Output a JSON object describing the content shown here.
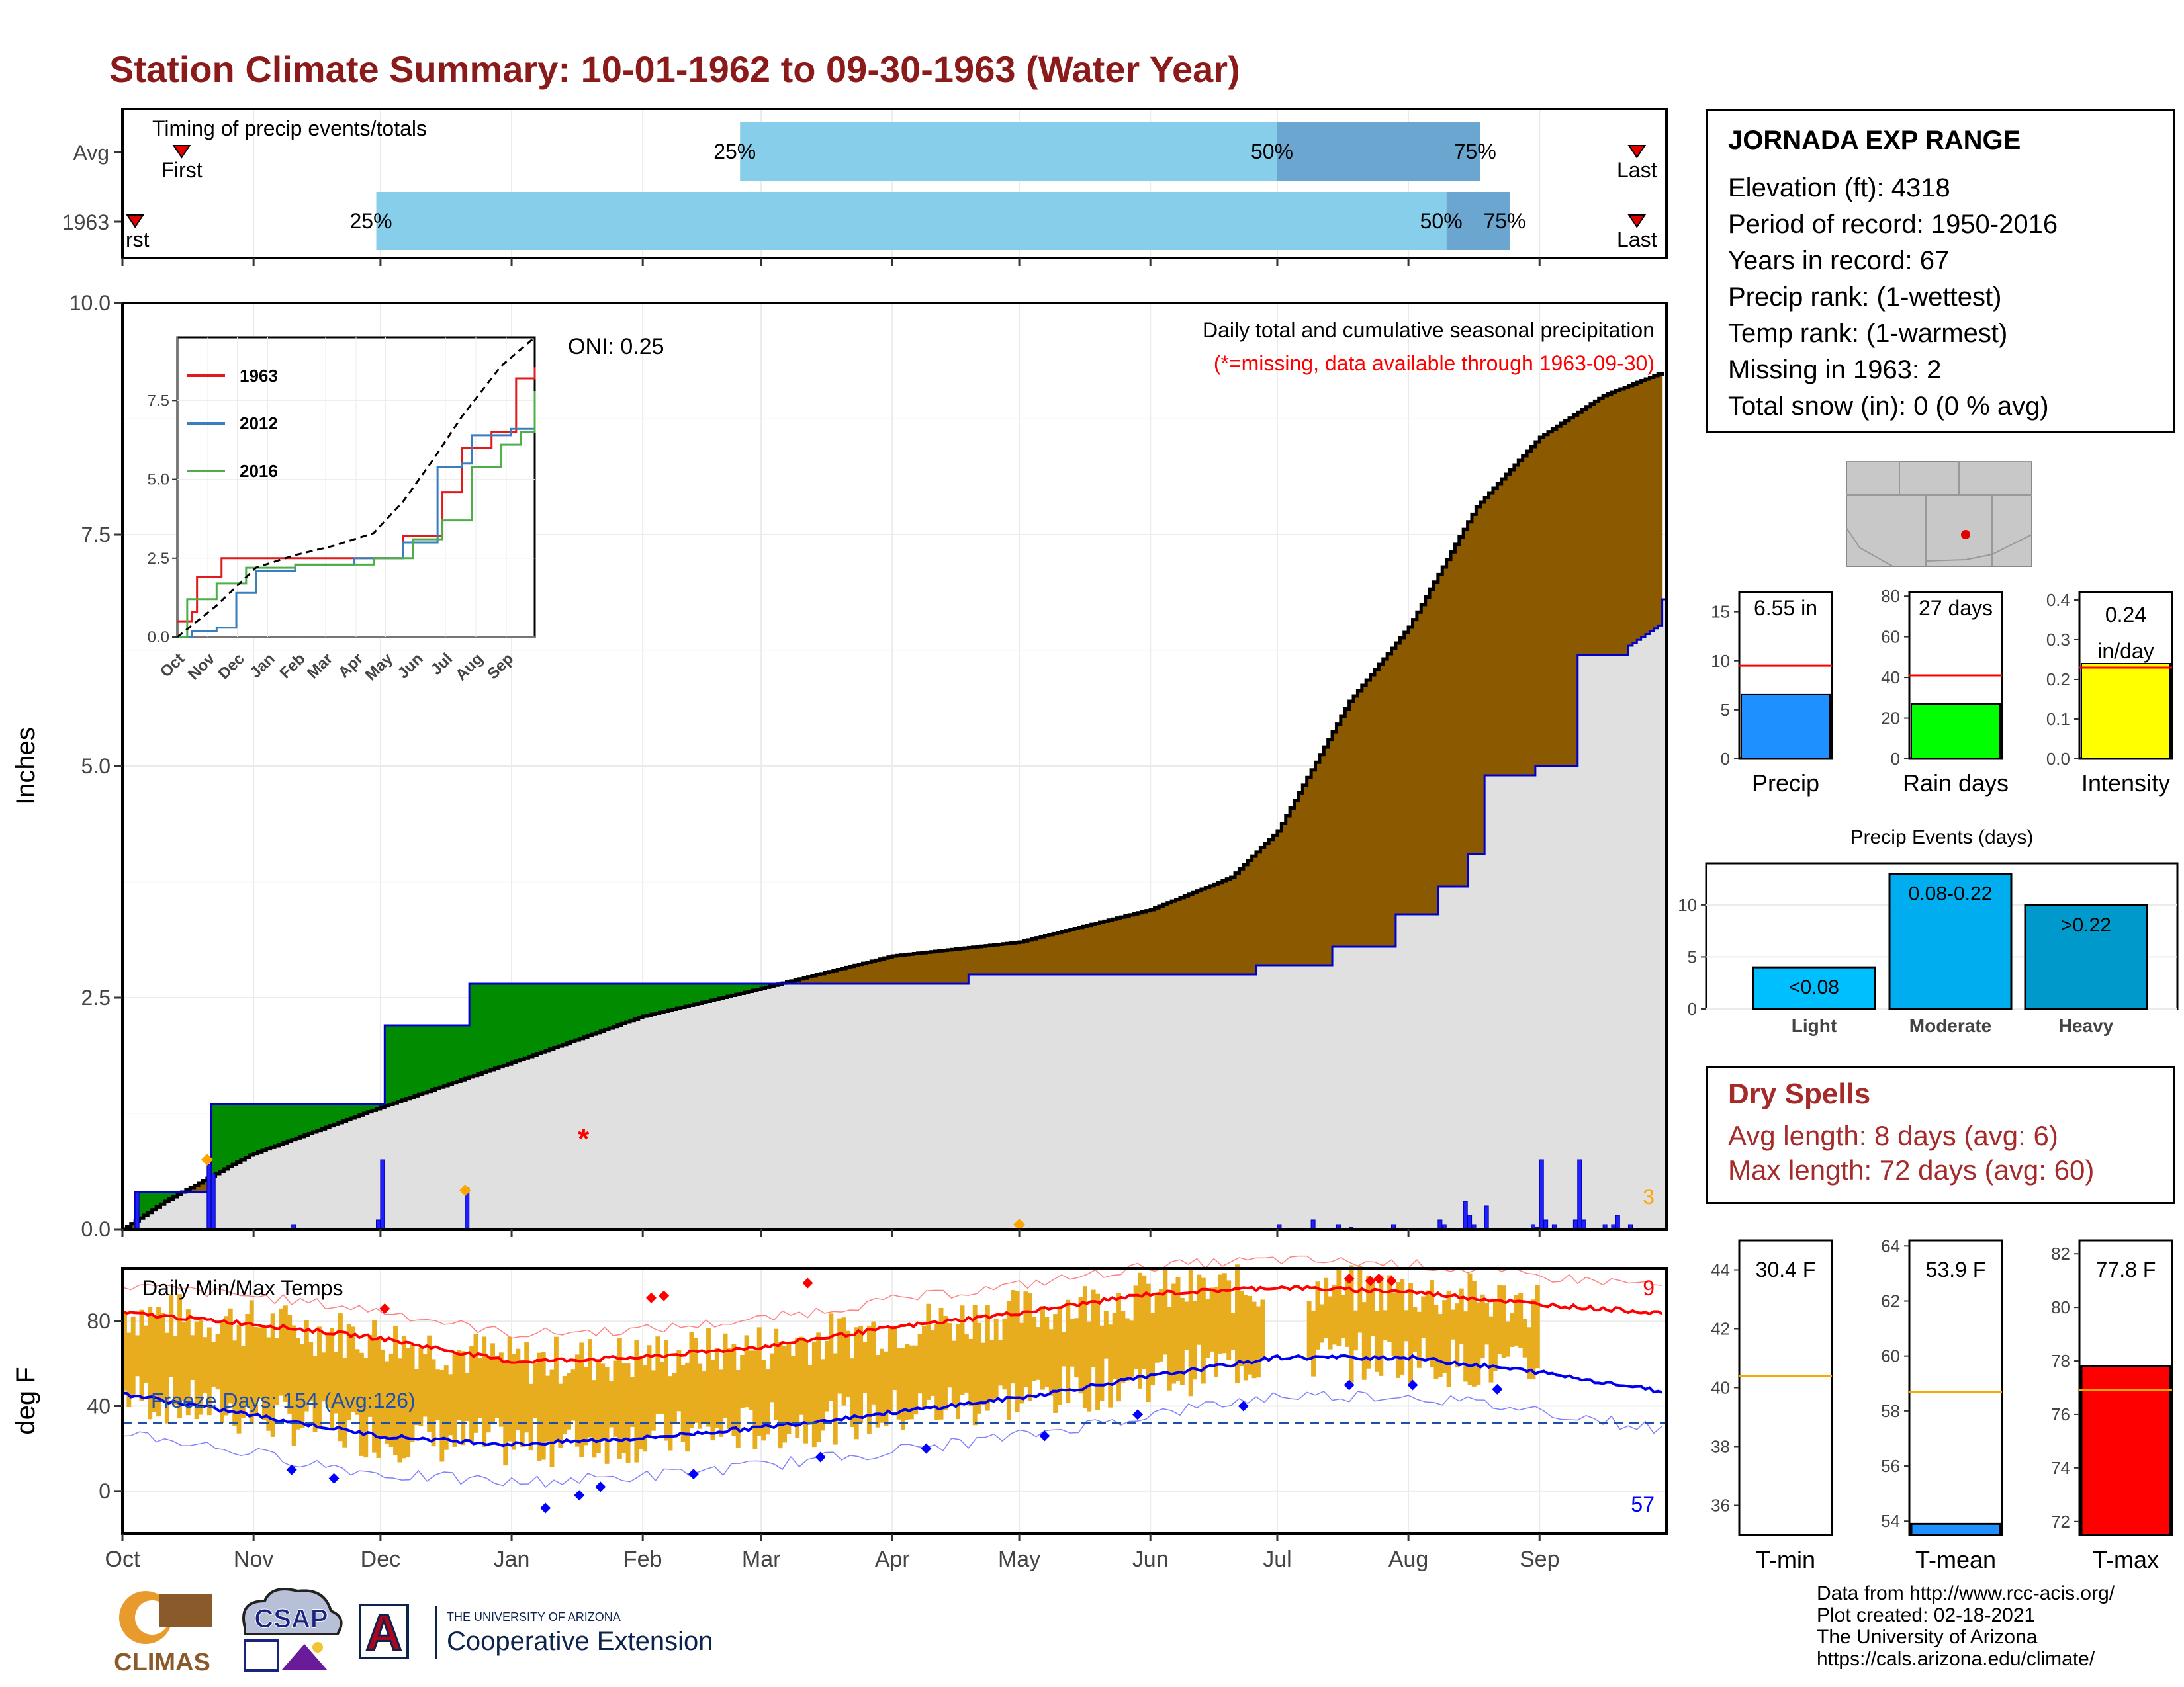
{
  "title": "Station Climate Summary: 10-01-1962 to 09-30-1963 (Water Year)",
  "colors": {
    "title": "#8b1a1a",
    "timing_light": "#87ceeb",
    "timing_dark": "#6aa6cf",
    "precip_bar": "#1f1fff",
    "cum_above": "#8b5a00",
    "cum_below": "#008b00",
    "avg_fill": "#e0e0e0",
    "temp_bar": "#e8ad1f",
    "tmax_avg": "#ff0000",
    "tmin_avg": "#0000ee",
    "inset_1963": "#e31a1c",
    "inset_2012": "#3a7ebf",
    "inset_2016": "#4daf4a"
  },
  "timing": {
    "label": "Timing of precip events/totals",
    "rows": [
      {
        "name": "Avg",
        "first_day": 14,
        "p25_day": 146,
        "p50_day": 273,
        "p75_day": 321,
        "last_day": 358
      },
      {
        "name": "1963",
        "first_day": 3,
        "p25_day": 60,
        "p50_day": 313,
        "p75_day": 328,
        "last_day": 358
      }
    ],
    "first_label": "First",
    "first_label_clipped": "irst",
    "last_label": "Last",
    "p25": "25%",
    "p50": "50%",
    "p75": "75%"
  },
  "station": {
    "name": "JORNADA EXP RANGE",
    "lines": [
      "Elevation (ft): 4318",
      "Period of record: 1950-2016",
      "Years in record: 67",
      "Precip rank:  (1-wettest)",
      "Temp rank:  (1-warmest)",
      "Missing in 1963: 2",
      "Total snow (in): 0 (0 % avg)"
    ]
  },
  "main_chart": {
    "ylabel": "Inches",
    "subtitle": "Daily total and cumulative seasonal precipitation",
    "missing_note": "(*=missing, data available through 1963-09-30)",
    "oni": "ONI: 0.25",
    "missing_count": "3",
    "y_ticks": [
      "0.0",
      "2.5",
      "5.0",
      "7.5",
      "10.0"
    ]
  },
  "months": [
    "Oct",
    "Nov",
    "Dec",
    "Jan",
    "Feb",
    "Mar",
    "Apr",
    "May",
    "Jun",
    "Jul",
    "Aug",
    "Sep"
  ],
  "month_days": [
    0,
    31,
    61,
    92,
    123,
    151,
    182,
    212,
    243,
    273,
    304,
    335
  ],
  "inset": {
    "legend": [
      "1963",
      "2012",
      "2016"
    ],
    "y_ticks": [
      "0.0",
      "2.5",
      "5.0",
      "7.5"
    ],
    "months": [
      "Oct",
      "Nov",
      "Dec",
      "Jan",
      "Feb",
      "Mar",
      "Apr",
      "May",
      "Jun",
      "Jul",
      "Aug",
      "Sep"
    ]
  },
  "temp_chart": {
    "label": "Daily Min/Max Temps",
    "ylabel": "deg F",
    "freeze": "Freeze Days: 154 (Avg:126)",
    "hot_count": "9",
    "cold_count": "57",
    "y_ticks": [
      "0",
      "40",
      "80"
    ]
  },
  "mini_bars": [
    {
      "value_label": "6.55 in",
      "label": "Precip",
      "ticks": [
        "0",
        "5",
        "10",
        "15"
      ],
      "color": "#1e90ff"
    },
    {
      "value_label": "27 days",
      "label": "Rain days",
      "ticks": [
        "0",
        "20",
        "40",
        "60",
        "80"
      ],
      "color": "#00ff00"
    },
    {
      "value_label": "0.24",
      "value_label2": "in/day",
      "label": "Intensity",
      "ticks": [
        "0.0",
        "0.1",
        "0.2",
        "0.3",
        "0.4"
      ],
      "color": "#ffff00"
    }
  ],
  "events": {
    "title": "Precip Events (days)",
    "categories": [
      "Light",
      "Moderate",
      "Heavy"
    ],
    "labels": [
      "<0.08",
      "0.08-0.22",
      ">0.22"
    ],
    "values": [
      4,
      13,
      10
    ],
    "ticks": [
      "0",
      "5",
      "10"
    ]
  },
  "dry_spells": {
    "title": "Dry Spells",
    "avg": "Avg length: 8 days (avg: 6)",
    "max": "Max length: 72 days (avg: 60)"
  },
  "temp_summary": [
    {
      "value_label": "30.4 F",
      "label": "T-min",
      "ticks": [
        "36",
        "38",
        "40",
        "42",
        "44"
      ]
    },
    {
      "value_label": "53.9 F",
      "label": "T-mean",
      "ticks": [
        "54",
        "56",
        "58",
        "60",
        "62",
        "64"
      ]
    },
    {
      "value_label": "77.8 F",
      "label": "T-max",
      "ticks": [
        "72",
        "74",
        "76",
        "78",
        "80",
        "82"
      ]
    }
  ],
  "footer": [
    "Data from http://www.rcc-acis.org/",
    "Plot created: 02-18-2021",
    "The University of Arizona",
    "https://cals.arizona.edu/climate/"
  ],
  "logos": {
    "climas": "CLIMAS",
    "csap": "CSAP",
    "ua_small": "THE UNIVERSITY OF ARIZONA",
    "ua_big": "Cooperative Extension",
    "ua_letter": "A"
  },
  "chart_data": [
    {
      "type": "area",
      "title": "Daily total and cumulative seasonal precipitation",
      "ylabel": "Inches",
      "ylim": [
        0,
        10
      ],
      "x_unit": "day of water year (0 = Oct 1)",
      "cumulative_1963": [
        [
          0,
          0
        ],
        [
          3,
          0.4
        ],
        [
          20,
          0.4
        ],
        [
          21,
          1.35
        ],
        [
          61,
          1.35
        ],
        [
          62,
          2.2
        ],
        [
          81,
          2.2
        ],
        [
          82,
          2.65
        ],
        [
          160,
          2.65
        ],
        [
          200,
          2.75
        ],
        [
          267,
          2.75
        ],
        [
          268,
          2.85
        ],
        [
          285,
          2.85
        ],
        [
          286,
          3.05
        ],
        [
          300,
          3.05
        ],
        [
          301,
          3.4
        ],
        [
          310,
          3.4
        ],
        [
          311,
          3.7
        ],
        [
          317,
          3.7
        ],
        [
          318,
          4.05
        ],
        [
          321,
          4.05
        ],
        [
          322,
          4.9
        ],
        [
          333,
          4.9
        ],
        [
          334,
          5.0
        ],
        [
          343,
          5.0
        ],
        [
          344,
          6.2
        ],
        [
          355,
          6.2
        ],
        [
          356,
          6.3
        ],
        [
          364,
          6.55
        ]
      ],
      "cumulative_avg": [
        [
          0,
          0
        ],
        [
          10,
          0.3
        ],
        [
          30,
          0.8
        ],
        [
          60,
          1.3
        ],
        [
          92,
          1.8
        ],
        [
          123,
          2.3
        ],
        [
          151,
          2.6
        ],
        [
          182,
          2.95
        ],
        [
          212,
          3.1
        ],
        [
          243,
          3.45
        ],
        [
          262,
          3.8
        ],
        [
          273,
          4.3
        ],
        [
          290,
          5.7
        ],
        [
          304,
          6.5
        ],
        [
          320,
          7.8
        ],
        [
          335,
          8.55
        ],
        [
          350,
          9.0
        ],
        [
          364,
          9.25
        ]
      ],
      "daily_1963": [
        [
          3,
          0.4
        ],
        [
          20,
          0.7
        ],
        [
          21,
          0.6
        ],
        [
          40,
          0.05
        ],
        [
          60,
          0.1
        ],
        [
          61,
          0.75
        ],
        [
          81,
          0.45
        ],
        [
          273,
          0.05
        ],
        [
          281,
          0.1
        ],
        [
          287,
          0.05
        ],
        [
          290,
          0.02
        ],
        [
          300,
          0.05
        ],
        [
          311,
          0.1
        ],
        [
          312,
          0.05
        ],
        [
          317,
          0.3
        ],
        [
          318,
          0.15
        ],
        [
          319,
          0.05
        ],
        [
          322,
          0.25
        ],
        [
          333,
          0.05
        ],
        [
          334,
          0.02
        ],
        [
          335,
          0.75
        ],
        [
          336,
          0.1
        ],
        [
          338,
          0.05
        ],
        [
          343,
          0.1
        ],
        [
          344,
          0.75
        ],
        [
          345,
          0.1
        ],
        [
          350,
          0.05
        ],
        [
          352,
          0.05
        ],
        [
          353,
          0.15
        ],
        [
          356,
          0.05
        ]
      ],
      "missing_days": [
        109
      ],
      "missing_markers": [
        [
          20,
          0.75
        ],
        [
          81,
          0.42
        ],
        [
          212,
          0.05
        ]
      ]
    },
    {
      "type": "line",
      "title": "Cumulative precipitation comparison years",
      "ylim": [
        0,
        9.5
      ],
      "series": [
        {
          "name": "1963",
          "points": [
            [
              0,
              0.5
            ],
            [
              15,
              0.8
            ],
            [
              20,
              1.9
            ],
            [
              40,
              1.9
            ],
            [
              45,
              2.5
            ],
            [
              200,
              2.5
            ],
            [
              230,
              3.2
            ],
            [
              270,
              4.6
            ],
            [
              290,
              6.0
            ],
            [
              320,
              6.5
            ],
            [
              345,
              8.2
            ],
            [
              364,
              8.55
            ]
          ]
        },
        {
          "name": "2012",
          "points": [
            [
              0,
              0
            ],
            [
              15,
              0.2
            ],
            [
              40,
              0.3
            ],
            [
              60,
              1.4
            ],
            [
              80,
              2.1
            ],
            [
              120,
              2.3
            ],
            [
              180,
              2.5
            ],
            [
              230,
              3.0
            ],
            [
              265,
              5.4
            ],
            [
              290,
              5.5
            ],
            [
              300,
              6.4
            ],
            [
              340,
              6.6
            ],
            [
              364,
              7.8
            ]
          ]
        },
        {
          "name": "2016",
          "points": [
            [
              0,
              0
            ],
            [
              10,
              1.2
            ],
            [
              40,
              1.7
            ],
            [
              70,
              2.2
            ],
            [
              120,
              2.3
            ],
            [
              200,
              2.5
            ],
            [
              240,
              3.1
            ],
            [
              270,
              3.7
            ],
            [
              300,
              5.4
            ],
            [
              330,
              6.1
            ],
            [
              350,
              6.5
            ],
            [
              364,
              7.8
            ]
          ]
        },
        {
          "name": "average",
          "points": [
            [
              0,
              0
            ],
            [
              40,
              1.0
            ],
            [
              80,
              2.2
            ],
            [
              120,
              2.6
            ],
            [
              160,
              2.9
            ],
            [
              200,
              3.3
            ],
            [
              230,
              4.3
            ],
            [
              260,
              5.6
            ],
            [
              290,
              7.0
            ],
            [
              330,
              8.6
            ],
            [
              364,
              9.5
            ]
          ]
        }
      ]
    },
    {
      "type": "bar",
      "title": "Daily Min/Max Temps",
      "ylabel": "deg F",
      "ylim": [
        -20,
        105
      ],
      "avg_tmax": [
        [
          0,
          84
        ],
        [
          30,
          79
        ],
        [
          61,
          72
        ],
        [
          92,
          61
        ],
        [
          123,
          63
        ],
        [
          151,
          68
        ],
        [
          182,
          77
        ],
        [
          212,
          84
        ],
        [
          243,
          93
        ],
        [
          273,
          96
        ],
        [
          304,
          94
        ],
        [
          335,
          88
        ],
        [
          364,
          84
        ]
      ],
      "avg_tmin": [
        [
          0,
          46
        ],
        [
          30,
          36
        ],
        [
          61,
          26
        ],
        [
          92,
          22
        ],
        [
          123,
          25
        ],
        [
          151,
          30
        ],
        [
          182,
          37
        ],
        [
          212,
          44
        ],
        [
          243,
          54
        ],
        [
          273,
          63
        ],
        [
          304,
          63
        ],
        [
          335,
          56
        ],
        [
          364,
          47
        ]
      ],
      "freeze_line": 32
    },
    {
      "type": "bar",
      "title": "Summary bars",
      "categories": [
        "Precip",
        "Rain days",
        "Intensity"
      ],
      "values": [
        6.55,
        27,
        0.24
      ],
      "averages": [
        9.5,
        41,
        0.23
      ],
      "ylims": [
        [
          0,
          17
        ],
        [
          0,
          82
        ],
        [
          0,
          0.42
        ]
      ]
    },
    {
      "type": "bar",
      "title": "Precip Events (days)",
      "categories": [
        "Light",
        "Moderate",
        "Heavy"
      ],
      "values": [
        4,
        13,
        10
      ],
      "ylim": [
        0,
        14
      ]
    },
    {
      "type": "bar",
      "title": "Temperature summary",
      "categories": [
        "T-min",
        "T-mean",
        "T-max"
      ],
      "values": [
        30.4,
        53.9,
        77.8
      ],
      "averages": [
        40.4,
        58.7,
        76.9
      ],
      "ylims": [
        [
          35,
          45
        ],
        [
          53.5,
          64.2
        ],
        [
          71.5,
          82.5
        ]
      ]
    }
  ]
}
